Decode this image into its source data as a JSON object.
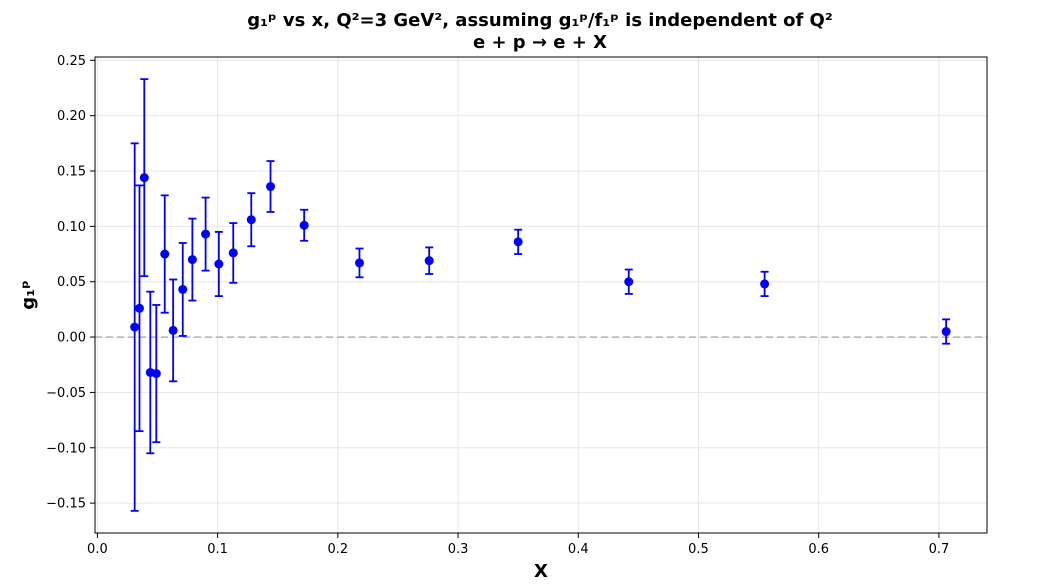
{
  "chart_data": {
    "type": "scatter",
    "title_line1": "g₁ᵖ vs x, Q²=3 GeV²,  assuming g₁ᵖ/f₁ᵖ is independent of Q²",
    "title_line2": "e + p → e + X",
    "xlabel": "X",
    "ylabel": "g₁ᵖ",
    "xlim": [
      -0.002,
      0.74
    ],
    "ylim": [
      -0.177,
      0.253
    ],
    "xticks": [
      0.0,
      0.1,
      0.2,
      0.3,
      0.4,
      0.5,
      0.6,
      0.7
    ],
    "xtick_labels": [
      "0.0",
      "0.1",
      "0.2",
      "0.3",
      "0.4",
      "0.5",
      "0.6",
      "0.7"
    ],
    "yticks": [
      -0.15,
      -0.1,
      -0.05,
      0.0,
      0.05,
      0.1,
      0.15,
      0.2,
      0.25
    ],
    "ytick_labels": [
      "−0.15",
      "−0.10",
      "−0.05",
      "0.00",
      "0.05",
      "0.10",
      "0.15",
      "0.20",
      "0.25"
    ],
    "grid": true,
    "reference_line_y": 0.0,
    "series": [
      {
        "color": "#0000ff",
        "points": [
          {
            "x": 0.031,
            "y": 0.009,
            "err": 0.166
          },
          {
            "x": 0.035,
            "y": 0.026,
            "err": 0.111
          },
          {
            "x": 0.039,
            "y": 0.144,
            "err": 0.089
          },
          {
            "x": 0.044,
            "y": -0.032,
            "err": 0.073
          },
          {
            "x": 0.049,
            "y": -0.033,
            "err": 0.062
          },
          {
            "x": 0.056,
            "y": 0.075,
            "err": 0.053
          },
          {
            "x": 0.063,
            "y": 0.006,
            "err": 0.046
          },
          {
            "x": 0.071,
            "y": 0.043,
            "err": 0.042
          },
          {
            "x": 0.079,
            "y": 0.07,
            "err": 0.037
          },
          {
            "x": 0.09,
            "y": 0.093,
            "err": 0.033
          },
          {
            "x": 0.101,
            "y": 0.066,
            "err": 0.029
          },
          {
            "x": 0.113,
            "y": 0.076,
            "err": 0.027
          },
          {
            "x": 0.128,
            "y": 0.106,
            "err": 0.024
          },
          {
            "x": 0.144,
            "y": 0.136,
            "err": 0.023
          },
          {
            "x": 0.172,
            "y": 0.101,
            "err": 0.014
          },
          {
            "x": 0.218,
            "y": 0.067,
            "err": 0.013
          },
          {
            "x": 0.276,
            "y": 0.069,
            "err": 0.012
          },
          {
            "x": 0.35,
            "y": 0.086,
            "err": 0.011
          },
          {
            "x": 0.442,
            "y": 0.05,
            "err": 0.011
          },
          {
            "x": 0.555,
            "y": 0.048,
            "err": 0.011
          },
          {
            "x": 0.706,
            "y": 0.005,
            "err": 0.011
          }
        ]
      }
    ]
  }
}
